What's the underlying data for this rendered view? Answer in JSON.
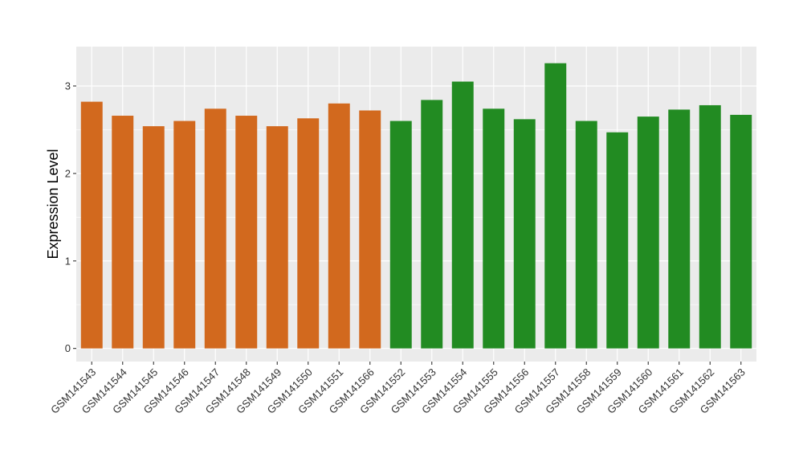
{
  "chart_data": {
    "type": "bar",
    "title": "",
    "xlabel": "",
    "ylabel": "Expression Level",
    "ylim": [
      -0.15,
      3.45
    ],
    "yticks": [
      0,
      1,
      2,
      3
    ],
    "grid": true,
    "legend": "none",
    "categories": [
      "GSM141543",
      "GSM141544",
      "GSM141545",
      "GSM141546",
      "GSM141547",
      "GSM141548",
      "GSM141549",
      "GSM141550",
      "GSM141551",
      "GSM141566",
      "GSM141552",
      "GSM141553",
      "GSM141554",
      "GSM141555",
      "GSM141556",
      "GSM141557",
      "GSM141558",
      "GSM141559",
      "GSM141560",
      "GSM141561",
      "GSM141562",
      "GSM141563"
    ],
    "values": [
      2.82,
      2.66,
      2.54,
      2.6,
      2.74,
      2.66,
      2.54,
      2.63,
      2.8,
      2.72,
      2.6,
      2.84,
      3.05,
      2.74,
      2.62,
      3.26,
      2.6,
      2.47,
      2.65,
      2.73,
      2.78,
      2.67
    ],
    "group_colors": [
      "#D2691E",
      "#D2691E",
      "#D2691E",
      "#D2691E",
      "#D2691E",
      "#D2691E",
      "#D2691E",
      "#D2691E",
      "#D2691E",
      "#D2691E",
      "#228B22",
      "#228B22",
      "#228B22",
      "#228B22",
      "#228B22",
      "#228B22",
      "#228B22",
      "#228B22",
      "#228B22",
      "#228B22",
      "#228B22",
      "#228B22"
    ],
    "panel_background": "#EBEBEB",
    "grid_color": "#FFFFFF"
  }
}
